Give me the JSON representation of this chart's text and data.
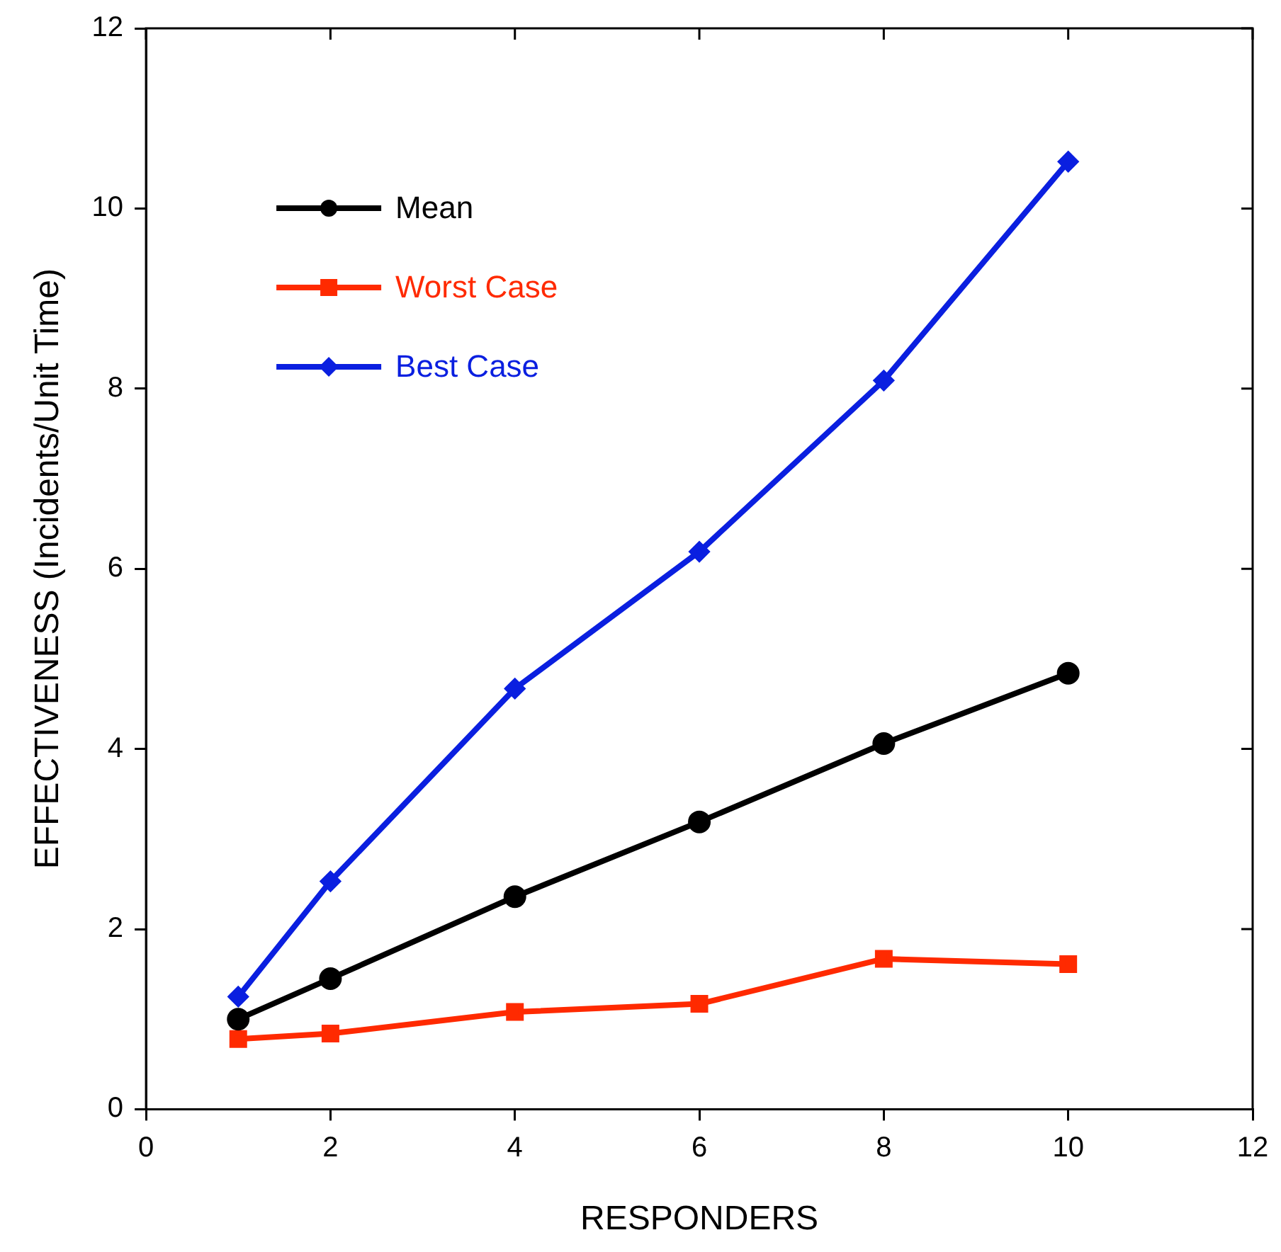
{
  "chart_data": {
    "type": "line",
    "xlabel": "RESPONDERS",
    "ylabel": "EFFECTIVENESS (Incidents/Unit Time)",
    "x": [
      1,
      2,
      4,
      6,
      8,
      10
    ],
    "series": [
      {
        "name": "Mean",
        "color": "#000000",
        "marker": "circle",
        "values": [
          1.0,
          1.45,
          2.36,
          3.19,
          4.06,
          4.84
        ]
      },
      {
        "name": "Worst Case",
        "color": "#ff2a00",
        "marker": "square",
        "values": [
          0.78,
          0.84,
          1.08,
          1.17,
          1.67,
          1.61
        ]
      },
      {
        "name": "Best Case",
        "color": "#0a1fe0",
        "marker": "diamond",
        "values": [
          1.25,
          2.53,
          4.67,
          6.19,
          8.09,
          10.52
        ]
      }
    ],
    "xlim": [
      0,
      12
    ],
    "xticks": [
      0,
      2,
      4,
      6,
      8,
      10,
      12
    ],
    "ylim": [
      0,
      12
    ],
    "yticks": [
      0,
      2,
      4,
      6,
      8,
      10,
      12
    ],
    "grid": false,
    "legend": "top left",
    "line_style": "solid"
  }
}
